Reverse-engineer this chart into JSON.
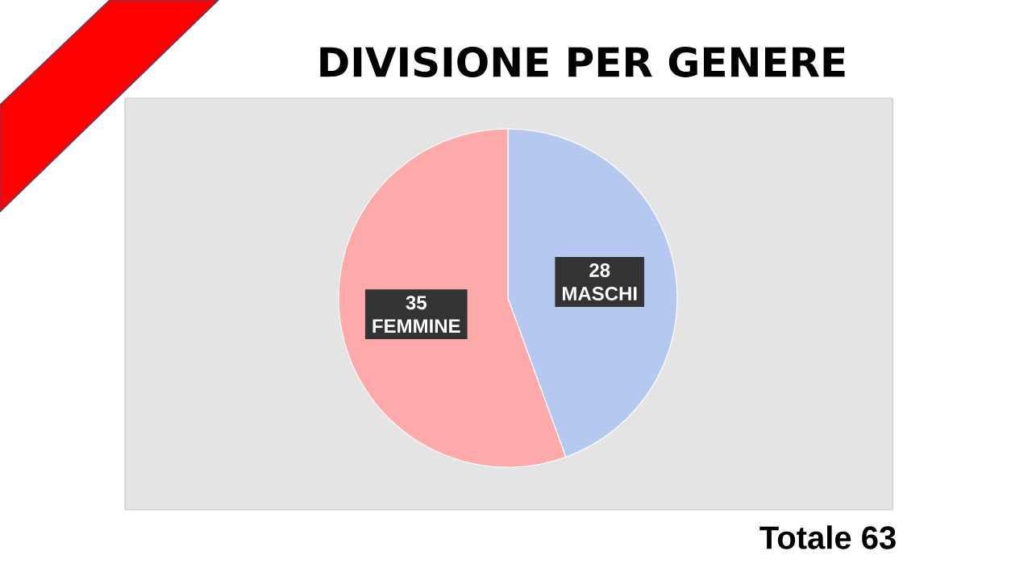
{
  "chart_data": {
    "type": "pie",
    "title": "DIVISIONE PER GENERE",
    "categories": [
      "MASCHI",
      "FEMMINE"
    ],
    "values": [
      28,
      35
    ],
    "colors": [
      "#b4c8f0",
      "#ffaaaa"
    ],
    "data_labels": true,
    "annotations": [
      "Totale 63"
    ]
  }
}
